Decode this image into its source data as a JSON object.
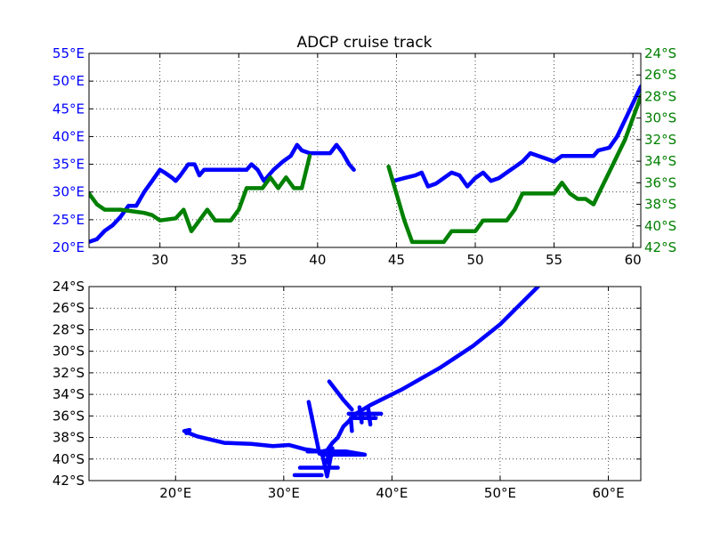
{
  "figure": {
    "title": "ADCP cruise track"
  },
  "colors": {
    "lon_series": "#0000ff",
    "lat_series": "#008000",
    "axis": "#000000",
    "grid": "#000000"
  },
  "chart_data": [
    {
      "type": "line",
      "title": "ADCP cruise track",
      "xlabel": "",
      "ylabel": "",
      "xlim": [
        25.5,
        60.5
      ],
      "ylim": [
        20,
        55
      ],
      "y2lim": [
        -42,
        -24
      ],
      "grid": true,
      "x_ticks": [
        30,
        35,
        40,
        45,
        50,
        55,
        60
      ],
      "x_tick_labels": [
        "30",
        "35",
        "40",
        "45",
        "50",
        "55",
        "60"
      ],
      "y_ticks": [
        20,
        25,
        30,
        35,
        40,
        45,
        50,
        55
      ],
      "y_tick_labels": [
        "20°E",
        "25°E",
        "30°E",
        "35°E",
        "40°E",
        "45°E",
        "50°E",
        "55°E"
      ],
      "y2_ticks": [
        -24,
        -26,
        -28,
        -30,
        -32,
        -34,
        -36,
        -38,
        -40,
        -42
      ],
      "y2_tick_labels": [
        "24°S",
        "26°S",
        "28°S",
        "30°S",
        "32°S",
        "34°S",
        "36°S",
        "38°S",
        "40°S",
        "42°S"
      ],
      "series": [
        {
          "axis": "left",
          "segments": [
            [
              [
                25.5,
                21.0
              ],
              [
                26.0,
                21.5
              ],
              [
                26.5,
                23.0
              ],
              [
                27.0,
                24.0
              ],
              [
                27.5,
                25.5
              ],
              [
                28.0,
                27.5
              ],
              [
                28.5,
                27.5
              ],
              [
                29.0,
                30.0
              ],
              [
                29.5,
                32.0
              ],
              [
                30.0,
                34.0
              ],
              [
                30.3,
                33.5
              ],
              [
                30.8,
                32.5
              ],
              [
                31.0,
                32.0
              ],
              [
                31.3,
                33.0
              ],
              [
                31.8,
                35.0
              ],
              [
                32.2,
                35.0
              ],
              [
                32.5,
                33.0
              ],
              [
                32.8,
                34.0
              ],
              [
                33.5,
                34.0
              ],
              [
                34.5,
                34.0
              ],
              [
                35.5,
                34.0
              ],
              [
                35.8,
                35.0
              ],
              [
                36.2,
                34.0
              ],
              [
                36.6,
                32.0
              ],
              [
                37.2,
                34.0
              ],
              [
                37.8,
                35.5
              ],
              [
                38.3,
                36.5
              ],
              [
                38.7,
                38.5
              ],
              [
                39.0,
                37.5
              ],
              [
                39.5,
                37.0
              ],
              [
                40.8,
                37.0
              ],
              [
                41.2,
                38.5
              ],
              [
                41.6,
                37.0
              ],
              [
                42.0,
                35.0
              ],
              [
                42.3,
                34.0
              ]
            ],
            [
              [
                44.8,
                32.0
              ],
              [
                45.5,
                32.5
              ],
              [
                46.2,
                33.0
              ],
              [
                46.6,
                33.5
              ],
              [
                47.0,
                31.0
              ],
              [
                47.5,
                31.5
              ],
              [
                48.0,
                32.5
              ],
              [
                48.5,
                33.5
              ],
              [
                49.0,
                33.0
              ],
              [
                49.5,
                31.0
              ],
              [
                50.0,
                32.5
              ],
              [
                50.5,
                33.5
              ],
              [
                51.0,
                32.0
              ],
              [
                51.5,
                32.5
              ],
              [
                52.0,
                33.5
              ],
              [
                52.5,
                34.5
              ],
              [
                53.0,
                35.5
              ],
              [
                53.5,
                37.0
              ],
              [
                54.0,
                36.5
              ],
              [
                54.5,
                36.0
              ],
              [
                55.0,
                35.5
              ],
              [
                55.5,
                36.5
              ],
              [
                57.5,
                36.5
              ],
              [
                57.8,
                37.5
              ],
              [
                58.5,
                38.0
              ],
              [
                59.0,
                40.0
              ],
              [
                59.5,
                43.0
              ],
              [
                60.0,
                46.0
              ],
              [
                60.5,
                49.0
              ],
              [
                61.0,
                50.5
              ],
              [
                61.5,
                51.5
              ],
              [
                62.0,
                53.0
              ]
            ]
          ]
        },
        {
          "axis": "right",
          "segments": [
            [
              [
                25.5,
                -37.0
              ],
              [
                26.0,
                -38.0
              ],
              [
                26.5,
                -38.5
              ],
              [
                27.5,
                -38.5
              ],
              [
                28.5,
                -38.7
              ],
              [
                29.0,
                -38.8
              ],
              [
                29.5,
                -39.0
              ],
              [
                30.0,
                -39.5
              ],
              [
                31.0,
                -39.3
              ],
              [
                31.5,
                -38.5
              ],
              [
                32.0,
                -40.5
              ],
              [
                32.5,
                -39.5
              ],
              [
                33.0,
                -38.5
              ],
              [
                33.5,
                -39.5
              ],
              [
                34.5,
                -39.5
              ],
              [
                35.0,
                -38.5
              ],
              [
                35.5,
                -36.5
              ],
              [
                36.5,
                -36.5
              ],
              [
                37.0,
                -35.5
              ],
              [
                37.5,
                -36.5
              ],
              [
                38.0,
                -35.5
              ],
              [
                38.5,
                -36.5
              ],
              [
                39.0,
                -36.5
              ],
              [
                39.5,
                -33.5
              ]
            ],
            [
              [
                44.5,
                -34.5
              ],
              [
                45.0,
                -37.0
              ],
              [
                45.5,
                -39.5
              ],
              [
                46.0,
                -41.5
              ],
              [
                46.5,
                -41.5
              ],
              [
                47.0,
                -41.5
              ],
              [
                48.0,
                -41.5
              ],
              [
                48.5,
                -40.5
              ],
              [
                50.0,
                -40.5
              ],
              [
                50.5,
                -39.5
              ],
              [
                52.0,
                -39.5
              ],
              [
                52.5,
                -38.5
              ],
              [
                53.0,
                -37.0
              ],
              [
                55.0,
                -37.0
              ],
              [
                55.5,
                -36.0
              ],
              [
                56.0,
                -37.0
              ],
              [
                56.5,
                -37.5
              ],
              [
                57.0,
                -37.5
              ],
              [
                57.5,
                -38.0
              ],
              [
                58.0,
                -36.5
              ],
              [
                58.5,
                -35.0
              ],
              [
                59.0,
                -33.5
              ],
              [
                59.5,
                -32.0
              ],
              [
                60.0,
                -30.0
              ],
              [
                60.5,
                -28.0
              ],
              [
                61.0,
                -26.5
              ],
              [
                61.5,
                -25.5
              ],
              [
                62.0,
                -24.5
              ]
            ]
          ]
        }
      ]
    },
    {
      "type": "line",
      "title": "",
      "xlabel": "",
      "ylabel": "",
      "xlim": [
        12,
        63
      ],
      "ylim": [
        -42,
        -24
      ],
      "grid": true,
      "x_ticks": [
        20,
        30,
        40,
        50,
        60
      ],
      "x_tick_labels": [
        "20°E",
        "30°E",
        "40°E",
        "50°E",
        "60°E"
      ],
      "y_ticks": [
        -24,
        -26,
        -28,
        -30,
        -32,
        -34,
        -36,
        -38,
        -40,
        -42
      ],
      "y_tick_labels": [
        "24°S",
        "26°S",
        "28°S",
        "30°S",
        "32°S",
        "34°S",
        "36°S",
        "38°S",
        "40°S",
        "42°S"
      ],
      "series": [
        {
          "segments": [
            [
              [
                21.0,
                -37.5
              ],
              [
                22.0,
                -37.9
              ],
              [
                24.5,
                -38.5
              ],
              [
                27.0,
                -38.6
              ],
              [
                29.0,
                -38.8
              ],
              [
                30.5,
                -38.7
              ],
              [
                32.0,
                -39.1
              ],
              [
                33.5,
                -39.3
              ],
              [
                34.0,
                -39.2
              ],
              [
                34.5,
                -38.5
              ],
              [
                35.0,
                -38.0
              ],
              [
                35.5,
                -37.0
              ],
              [
                36.0,
                -36.5
              ],
              [
                36.5,
                -35.9
              ],
              [
                38.0,
                -35.0
              ],
              [
                41.0,
                -33.5
              ],
              [
                44.5,
                -31.5
              ],
              [
                47.5,
                -29.5
              ],
              [
                50.0,
                -27.5
              ],
              [
                51.5,
                -26.0
              ],
              [
                53.0,
                -24.5
              ],
              [
                53.5,
                -24.0
              ]
            ],
            [
              [
                20.8,
                -37.4
              ],
              [
                21.3,
                -37.3
              ],
              [
                21.0,
                -37.6
              ]
            ],
            [
              [
                31.0,
                -41.5
              ],
              [
                33.5,
                -41.5
              ]
            ],
            [
              [
                31.5,
                -40.8
              ],
              [
                35.0,
                -40.8
              ]
            ],
            [
              [
                32.2,
                -39.3
              ],
              [
                35.8,
                -39.3
              ],
              [
                37.5,
                -39.6
              ],
              [
                33.5,
                -39.6
              ]
            ],
            [
              [
                32.3,
                -34.7
              ],
              [
                33.3,
                -39.5
              ]
            ],
            [
              [
                33.5,
                -39.3
              ],
              [
                34.0,
                -41.6
              ],
              [
                34.5,
                -39.0
              ],
              [
                33.8,
                -40.5
              ]
            ],
            [
              [
                34.2,
                -32.8
              ],
              [
                35.5,
                -34.5
              ],
              [
                36.3,
                -35.4
              ]
            ],
            [
              [
                36.0,
                -35.8
              ],
              [
                39.0,
                -35.8
              ]
            ],
            [
              [
                36.5,
                -36.2
              ],
              [
                38.5,
                -36.2
              ]
            ],
            [
              [
                37.0,
                -35.2
              ],
              [
                37.2,
                -36.6
              ]
            ],
            [
              [
                37.8,
                -35.2
              ],
              [
                38.0,
                -36.8
              ]
            ],
            [
              [
                36.2,
                -36.2
              ],
              [
                36.3,
                -37.4
              ]
            ]
          ]
        }
      ]
    }
  ]
}
